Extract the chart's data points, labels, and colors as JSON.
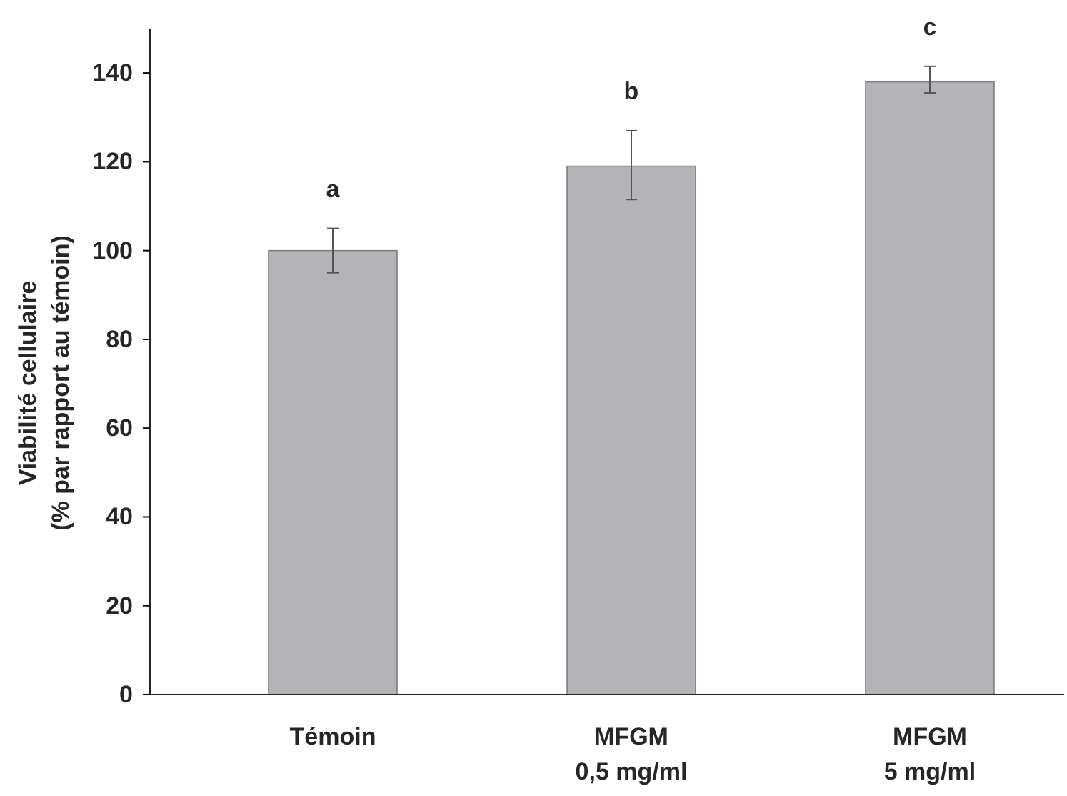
{
  "chart_data": {
    "type": "bar",
    "ylabel": "Viabilité cellulaire\n(% par rapport au témoin)",
    "categories": [
      "Témoin",
      "MFGM\n0,5 mg/ml",
      "MFGM\n5 mg/ml"
    ],
    "values": [
      100,
      119,
      138
    ],
    "errors": [
      [
        95,
        105
      ],
      [
        111.5,
        127
      ],
      [
        135.5,
        141.5
      ]
    ],
    "color": "#b4b4b8",
    "ylim": [
      0,
      150
    ],
    "yticks": [
      0,
      20,
      40,
      60,
      80,
      100,
      120,
      140
    ],
    "grid": false,
    "annotations": [
      {
        "text": "a",
        "x": "Témoin",
        "y": 105
      },
      {
        "text": "b",
        "x": "MFGM\n0,5 mg/ml",
        "y": 127
      },
      {
        "text": "c",
        "x": "MFGM\n5 mg/ml",
        "y": 141.5
      }
    ]
  }
}
